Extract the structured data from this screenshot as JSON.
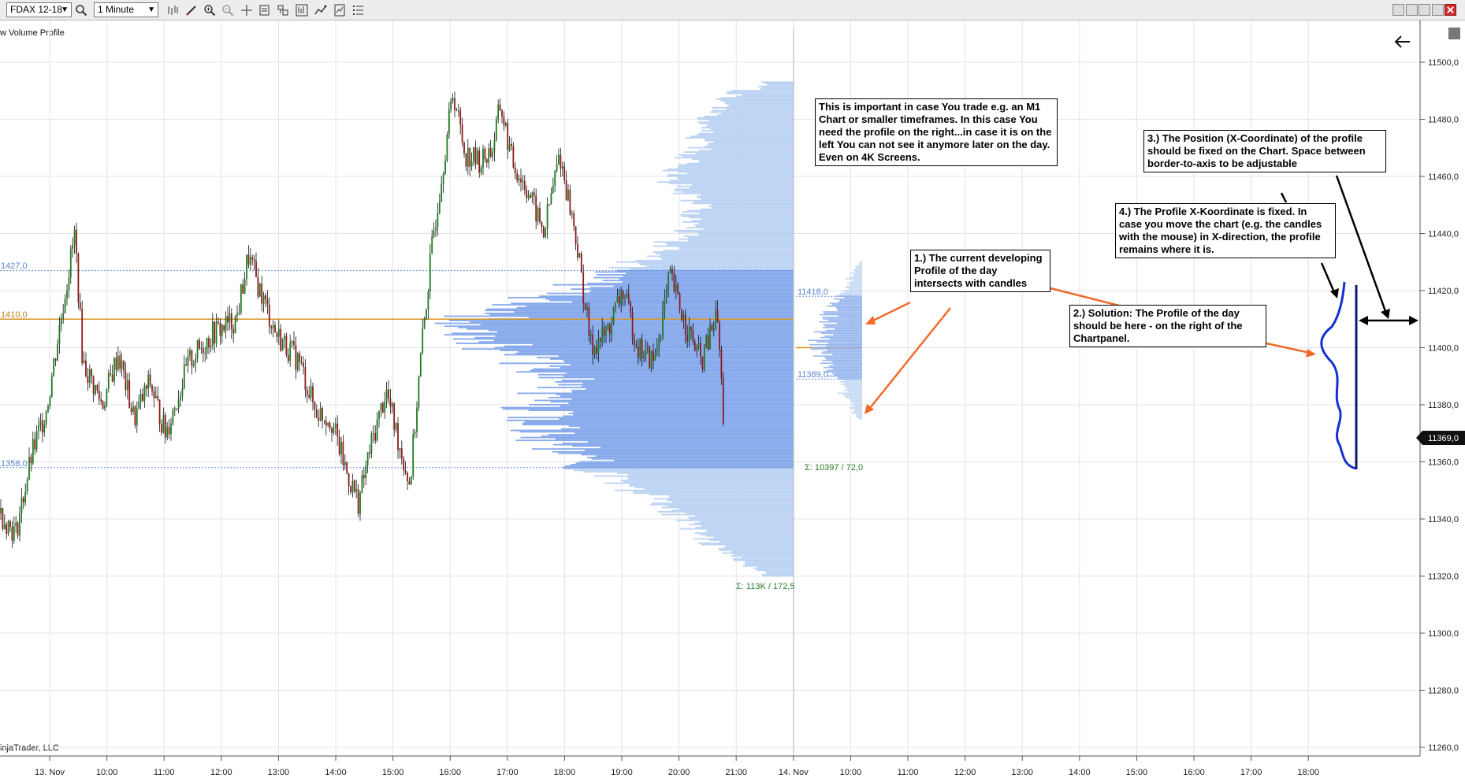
{
  "toolbar": {
    "instrument": "FDAX 12-18",
    "interval": "1 Minute",
    "tools": [
      "search-icon",
      "bar-style-icon",
      "pencil-icon",
      "zoom-in-icon",
      "zoom-out-icon",
      "crosshair-icon",
      "properties-icon",
      "templates-icon",
      "indicators-icon",
      "strategies-icon",
      "list-icon"
    ]
  },
  "indicator_label": "w Volume Profile",
  "watermark": "injaTrader, LLC",
  "price_marker": "11369,0",
  "callouts": {
    "important": "This is important in case You trade e.g. an M1 Chart or smaller timeframes. In this case You need the profile on the right...in case it is on the left You can not see it anymore later on the day. Even on 4K Screens.",
    "c1": "1.) The current developing Profile of the day intersects with candles",
    "c2": "2.) Solution: The Profile of the day should be here - on the right of the Chartpanel.",
    "c3": "3.) The Position (X-Coordinate) of the profile should be fixed on the Chart. Space between border-to-axis to be adjustable",
    "c4": "4.) The Profile X-Koordinate is fixed. In case you move the chart (e.g. the candles with the mouse) in X-direction, the profile remains where it is."
  },
  "levels": {
    "l1427": "1427,0",
    "l1410": "1410,0",
    "l1358": "1358,0",
    "l11418": "11418,0",
    "l11389": "11389,0"
  },
  "sums": {
    "session": "Σ: 113K / 172,5",
    "current": "Σ: 10397 / 72,0"
  },
  "colors": {
    "up_candle": "#1e7a1e",
    "down_candle": "#8b1a1a",
    "profile_light": "#bcd3f3",
    "profile_dark": "#86a9ec",
    "poc_line": "#d4951e",
    "level_line": "#6b8fd8",
    "arrow_orange": "#f26a2a",
    "sketch_blue": "#1530d0"
  },
  "chart_data": {
    "type": "candlestick",
    "instrument": "FDAX 12-18",
    "interval": "1 Minute",
    "y_ticks": [
      "11500,0",
      "11480,0",
      "11460,0",
      "11440,0",
      "11420,0",
      "11400,0",
      "11380,0",
      "11360,0",
      "11340,0",
      "11320,0",
      "11300,0",
      "11280,0",
      "11260,0"
    ],
    "ylim": [
      11260,
      11505
    ],
    "x_ticks": [
      "13. Nov",
      "10:00",
      "11:00",
      "12:00",
      "13:00",
      "14:00",
      "15:00",
      "16:00",
      "17:00",
      "18:00",
      "19:00",
      "20:00",
      "21:00",
      "14. Nov",
      "10:00",
      "11:00",
      "12:00",
      "13:00",
      "14:00",
      "15:00",
      "16:00",
      "17:00",
      "18:00"
    ],
    "close_path": [
      [
        0,
        11342
      ],
      [
        20,
        11335
      ],
      [
        40,
        11362
      ],
      [
        60,
        11380
      ],
      [
        80,
        11415
      ],
      [
        95,
        11440
      ],
      [
        105,
        11395
      ],
      [
        130,
        11380
      ],
      [
        150,
        11398
      ],
      [
        170,
        11375
      ],
      [
        190,
        11388
      ],
      [
        210,
        11370
      ],
      [
        240,
        11395
      ],
      [
        270,
        11405
      ],
      [
        300,
        11410
      ],
      [
        315,
        11432
      ],
      [
        330,
        11420
      ],
      [
        350,
        11405
      ],
      [
        380,
        11395
      ],
      [
        400,
        11378
      ],
      [
        420,
        11375
      ],
      [
        440,
        11356
      ],
      [
        455,
        11346
      ],
      [
        470,
        11365
      ],
      [
        490,
        11385
      ],
      [
        505,
        11368
      ],
      [
        520,
        11352
      ],
      [
        535,
        11400
      ],
      [
        550,
        11440
      ],
      [
        565,
        11470
      ],
      [
        575,
        11490
      ],
      [
        590,
        11468
      ],
      [
        610,
        11465
      ],
      [
        625,
        11470
      ],
      [
        635,
        11485
      ],
      [
        650,
        11465
      ],
      [
        670,
        11455
      ],
      [
        690,
        11440
      ],
      [
        710,
        11468
      ],
      [
        730,
        11440
      ],
      [
        750,
        11400
      ],
      [
        770,
        11405
      ],
      [
        790,
        11420
      ],
      [
        810,
        11400
      ],
      [
        830,
        11395
      ],
      [
        850,
        11425
      ],
      [
        870,
        11408
      ],
      [
        890,
        11395
      ],
      [
        910,
        11412
      ],
      [
        917,
        11380
      ],
      [
        920,
        11366
      ]
    ],
    "volume_profile": {
      "price_levels": [
        11322,
        11330,
        11340,
        11350,
        11358,
        11370,
        11380,
        11390,
        11400,
        11410,
        11420,
        11427,
        11440,
        11450,
        11460,
        11470,
        11480,
        11490
      ],
      "relative_volume": [
        0.12,
        0.25,
        0.35,
        0.5,
        0.65,
        0.8,
        0.85,
        0.75,
        0.95,
        1.0,
        0.72,
        0.55,
        0.35,
        0.3,
        0.4,
        0.3,
        0.3,
        0.18
      ],
      "value_area": [
        11358,
        11427
      ],
      "poc": 11410,
      "total": "Σ: 113K / 172,5"
    },
    "current_profile": {
      "high": 11418,
      "low": 11389,
      "total": "Σ: 10397 / 72,0"
    }
  }
}
